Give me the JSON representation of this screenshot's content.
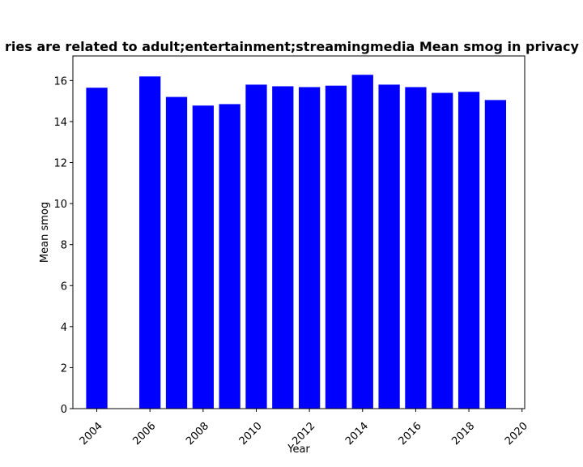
{
  "chart_data": {
    "type": "bar",
    "title": "ries are related to adult;entertainment;streamingmedia Mean smog in privacy p",
    "xlabel": "Year",
    "ylabel": "Mean smog",
    "x": [
      2004,
      2006,
      2007,
      2008,
      2009,
      2010,
      2011,
      2012,
      2013,
      2014,
      2015,
      2016,
      2017,
      2018,
      2019
    ],
    "values": [
      15.65,
      16.2,
      15.2,
      14.78,
      14.85,
      15.8,
      15.72,
      15.68,
      15.75,
      16.28,
      15.8,
      15.68,
      15.4,
      15.45,
      15.05
    ],
    "xlim": [
      2003.1,
      2020.1
    ],
    "ylim": [
      0,
      17.2
    ],
    "xticks": [
      2004,
      2006,
      2008,
      2010,
      2012,
      2014,
      2016,
      2018,
      2020
    ],
    "yticks": [
      0,
      2,
      4,
      6,
      8,
      10,
      12,
      14,
      16
    ],
    "bar_color": "#0000ff",
    "grid": false,
    "legend": "none"
  }
}
